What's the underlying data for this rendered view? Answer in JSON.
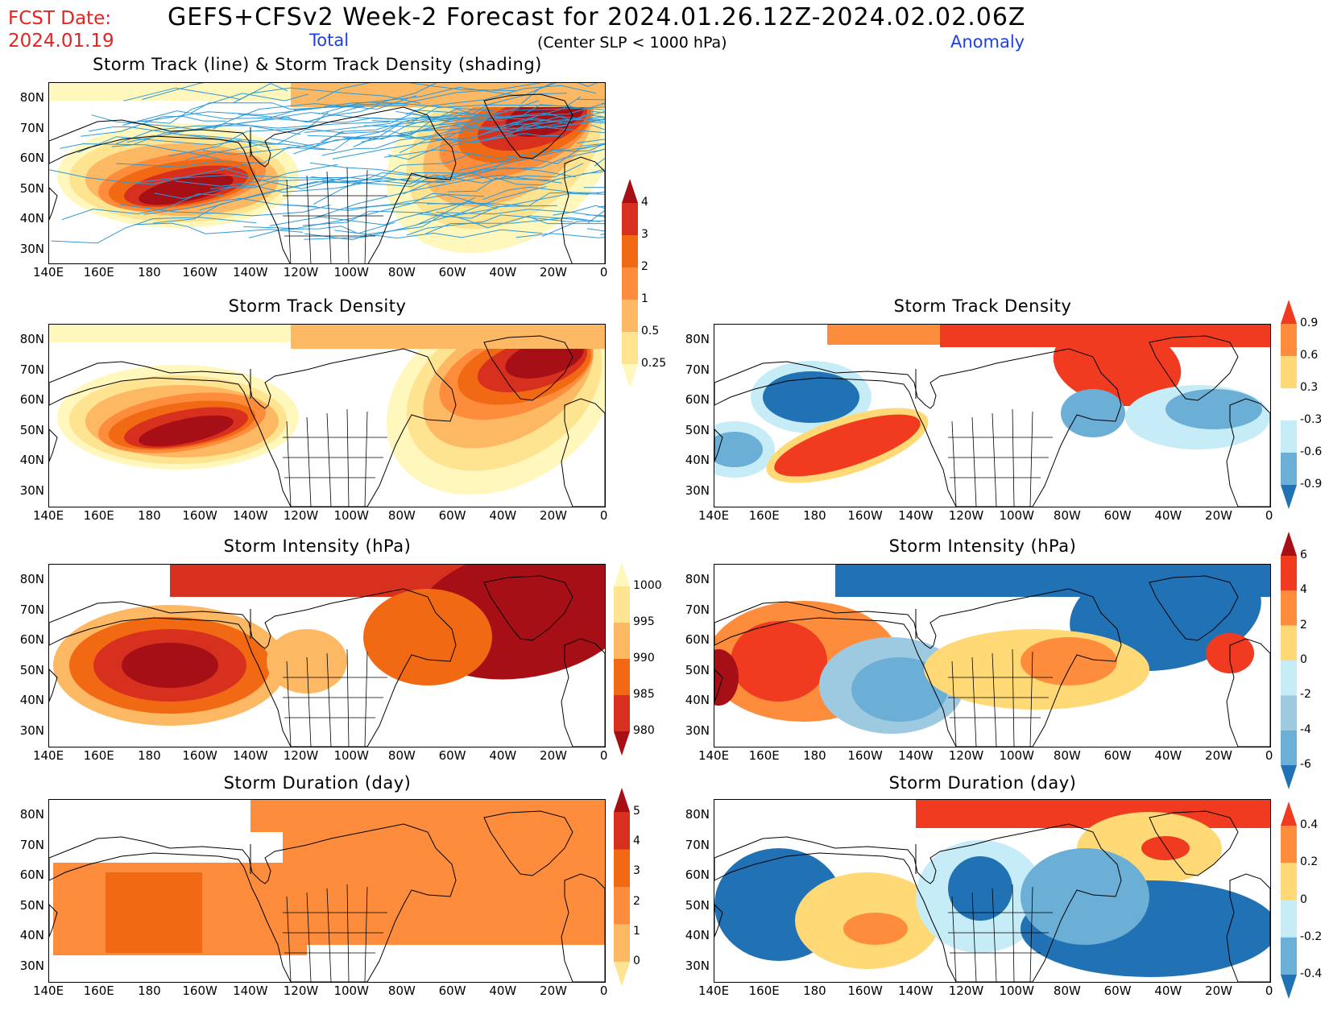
{
  "header": {
    "fcst_label": "FCST Date:",
    "fcst_date": "2024.01.19",
    "title": "GEFS+CFSv2 Week-2 Forecast for 2024.01.26.12Z-2024.02.02.06Z",
    "subtitle": "(Center SLP < 1000 hPa)",
    "total_label": "Total",
    "anomaly_label": "Anomaly"
  },
  "lat_ticks": [
    "80N",
    "70N",
    "60N",
    "50N",
    "40N",
    "30N"
  ],
  "lon_ticks": [
    "140E",
    "160E",
    "180",
    "160W",
    "140W",
    "120W",
    "100W",
    "80W",
    "60W",
    "40W",
    "20W",
    "0"
  ],
  "panels": [
    {
      "id": "p1",
      "title": "Storm Track (line) & Storm Track Density (shading)",
      "type": "density_tracks"
    },
    {
      "id": "p2",
      "title": "Storm Track Density",
      "type": "density"
    },
    {
      "id": "p3",
      "title": "Storm Track Density",
      "type": "density_anom"
    },
    {
      "id": "p4",
      "title": "Storm Intensity (hPa)",
      "type": "intensity"
    },
    {
      "id": "p5",
      "title": "Storm Intensity (hPa)",
      "type": "intensity_anom"
    },
    {
      "id": "p6",
      "title": "Storm Duration (day)",
      "type": "duration"
    },
    {
      "id": "p7",
      "title": "Storm Duration (day)",
      "type": "duration_anom"
    }
  ],
  "colorbars": {
    "density": {
      "labels": [
        "4",
        "3",
        "2",
        "1",
        "0.5",
        "0.25"
      ],
      "colors": [
        "#a50f15",
        "#d7301f",
        "#f16913",
        "#fd8d3c",
        "#fdb863",
        "#fee391",
        "#fff7bc"
      ]
    },
    "density_anom": {
      "labels": [
        "0.9",
        "0.6",
        "0.3",
        "-0.3",
        "-0.6",
        "-0.9"
      ],
      "colors": [
        "#f03b20",
        "#fd8d3c",
        "#fed976",
        "#ffffff",
        "#c6ecf7",
        "#6baed6",
        "#2171b5"
      ]
    },
    "intensity": {
      "labels": [
        "1000",
        "995",
        "990",
        "985",
        "980"
      ],
      "colors": [
        "#fff7bc",
        "#fee391",
        "#fdb863",
        "#f16913",
        "#d7301f",
        "#a50f15"
      ]
    },
    "intensity_anom": {
      "labels": [
        "6",
        "4",
        "2",
        "0",
        "-2",
        "-4",
        "-6"
      ],
      "colors": [
        "#a50f15",
        "#f03b20",
        "#fd8d3c",
        "#fed976",
        "#c6ecf7",
        "#9ecae1",
        "#6baed6",
        "#2171b5"
      ]
    },
    "duration": {
      "labels": [
        "5",
        "4",
        "3",
        "2",
        "1",
        "0"
      ],
      "colors": [
        "#a50f15",
        "#d7301f",
        "#f16913",
        "#fd8d3c",
        "#fdb863",
        "#fee391"
      ]
    },
    "duration_anom": {
      "labels": [
        "0.4",
        "0.2",
        "0",
        "-0.2",
        "-0.4"
      ],
      "colors": [
        "#f03b20",
        "#fd8d3c",
        "#fed976",
        "#c6ecf7",
        "#6baed6",
        "#2171b5"
      ]
    }
  }
}
